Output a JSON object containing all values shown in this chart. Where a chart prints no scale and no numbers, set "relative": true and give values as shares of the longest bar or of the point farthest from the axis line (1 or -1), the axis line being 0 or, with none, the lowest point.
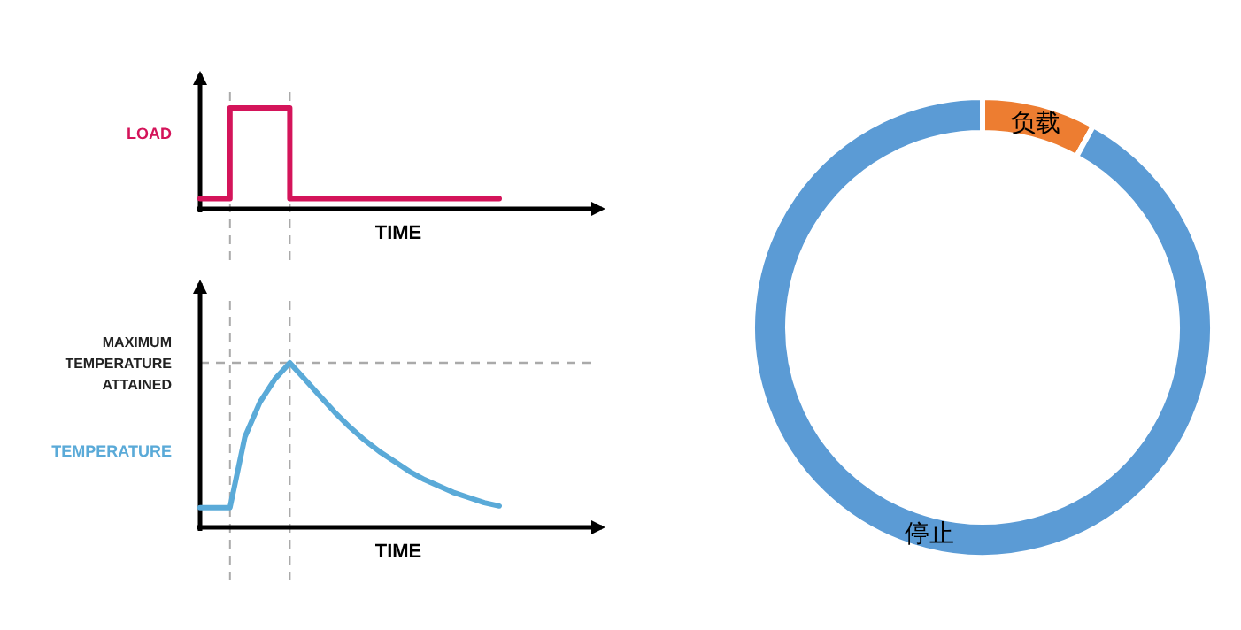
{
  "chart_data": [
    {
      "type": "step",
      "relative": true,
      "xlabel": "TIME",
      "ylabel": "LOAD",
      "categories": [
        null,
        null,
        null,
        null,
        null,
        null,
        null,
        null,
        null,
        null,
        null,
        null,
        null,
        null,
        null,
        null,
        null,
        null,
        null,
        null,
        null
      ],
      "series": [
        {
          "color": "#d4145a",
          "values": [
            0.1,
            0.1,
            1,
            1,
            1,
            1,
            0.1,
            0.1,
            0.1,
            0.1,
            0.1,
            0.1,
            0.1,
            0.1,
            0.1,
            0.1,
            0.1,
            0.1,
            0.1,
            0.1,
            0.1
          ]
        }
      ]
    },
    {
      "type": "line",
      "relative": true,
      "xlabel": "TIME",
      "ylabel": "TEMPERATURE",
      "categories": [
        null,
        null,
        null,
        null,
        null,
        null,
        null,
        null,
        null,
        null,
        null,
        null,
        null,
        null,
        null,
        null,
        null,
        null,
        null,
        null,
        null
      ],
      "series": [
        {
          "color": "#5aaad8",
          "values": [
            0.12,
            0.12,
            0.12,
            0.55,
            0.76,
            0.9,
            1,
            0.9,
            0.8,
            0.7,
            0.61,
            0.53,
            0.46,
            0.4,
            0.34,
            0.29,
            0.25,
            0.21,
            0.18,
            0.15,
            0.13
          ]
        }
      ],
      "ref_lines": [
        {
          "axis": "y",
          "value": 1,
          "label": "MAXIMUM TEMPERATURE ATTAINED",
          "color": "#aaaaaa",
          "line_style": "dashed"
        }
      ]
    },
    {
      "type": "donut",
      "categories": [
        "负载",
        "停止"
      ],
      "values": [
        8,
        92
      ],
      "colors": [
        "#ed7d31",
        "#5b9bd5"
      ],
      "data_labels": false
    }
  ]
}
